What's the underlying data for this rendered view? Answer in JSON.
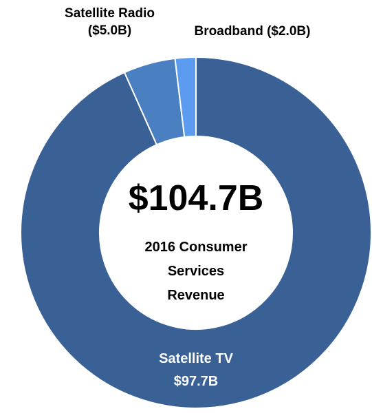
{
  "chart_data": {
    "type": "donut",
    "annotation": "$104.7B",
    "subtitle": "2016 Consumer Services Revenue",
    "categories": [
      "Satellite TV",
      "Satellite Radio",
      "Broadband"
    ],
    "values": [
      97.7,
      5.0,
      2.0
    ],
    "value_labels": [
      "$97.7B",
      "($5.0B)",
      "($2.0B)"
    ],
    "colors": [
      "#3a6196",
      "#4a7fc1",
      "#5b9cf0"
    ]
  }
}
